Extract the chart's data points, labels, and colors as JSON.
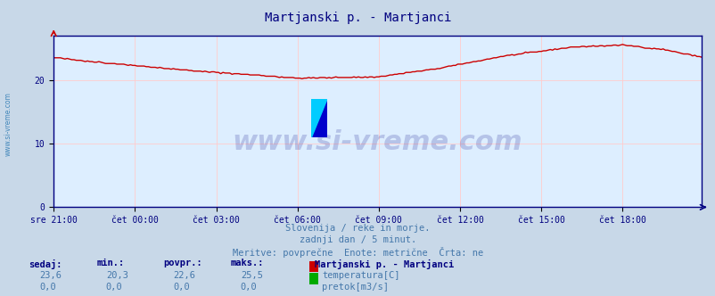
{
  "title": "Martjanski p. - Martjanci",
  "title_color": "#000080",
  "bg_color": "#c8d8e8",
  "plot_bg_color": "#ddeeff",
  "grid_color_v": "#ffcccc",
  "grid_color_h": "#ffcccc",
  "axis_color": "#000080",
  "x_tick_labels": [
    "sre 21:00",
    "čet 00:00",
    "čet 03:00",
    "čet 06:00",
    "čet 09:00",
    "čet 12:00",
    "čet 15:00",
    "čet 18:00"
  ],
  "y_ticks": [
    0,
    10,
    20
  ],
  "ylim": [
    0,
    27
  ],
  "xlim": [
    0,
    287
  ],
  "line_color": "#cc0000",
  "line_width": 1.0,
  "footer_lines": [
    "Slovenija / reke in morje.",
    "zadnji dan / 5 minut.",
    "Meritve: povprečne  Enote: metrične  Črta: ne"
  ],
  "footer_color": "#4477aa",
  "legend_title": "Martjanski p. - Martjanci",
  "legend_entries": [
    {
      "label": "temperatura[C]",
      "color": "#cc0000"
    },
    {
      "label": "pretok[m3/s]",
      "color": "#00aa00"
    }
  ],
  "stats_headers": [
    "sedaj:",
    "min.:",
    "povpr.:",
    "maks.:"
  ],
  "stats_values": [
    [
      "23,6",
      "20,3",
      "22,6",
      "25,5"
    ],
    [
      "0,0",
      "0,0",
      "0,0",
      "0,0"
    ]
  ],
  "watermark": "www.si-vreme.com",
  "watermark_color": "#000080",
  "watermark_alpha": 0.18,
  "side_label": "www.si-vreme.com",
  "side_label_color": "#4488bb"
}
